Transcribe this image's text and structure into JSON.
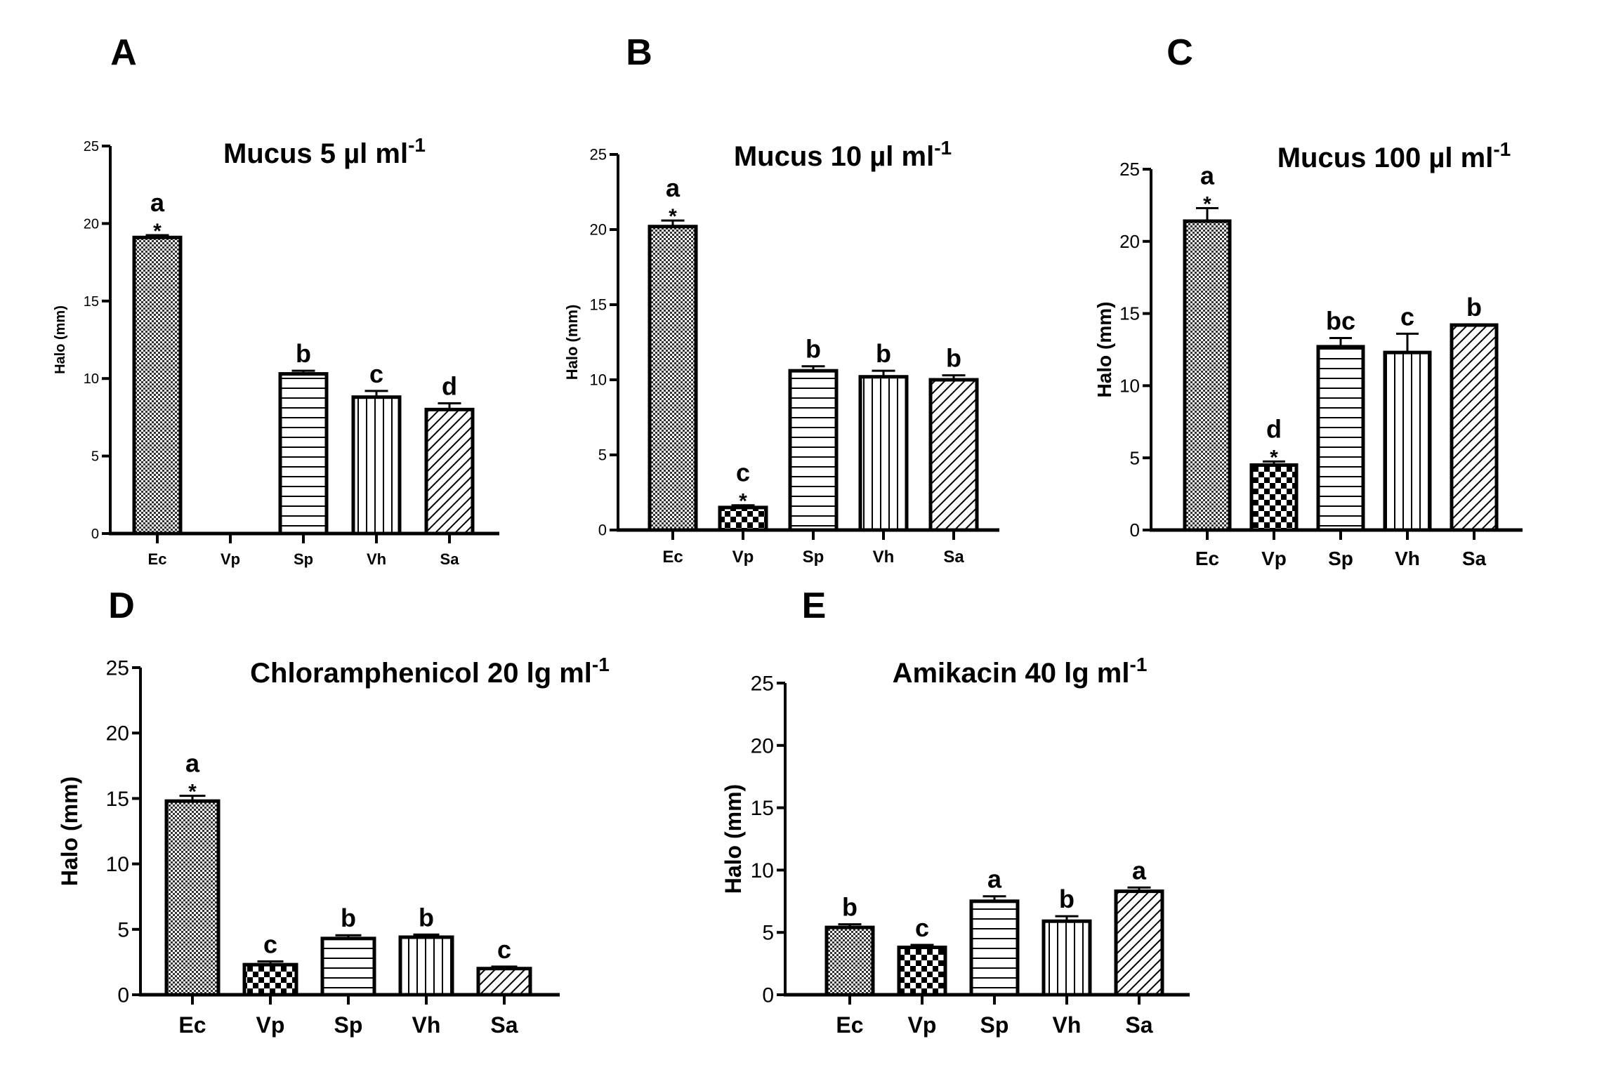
{
  "colors": {
    "axis": "#000000",
    "fill": "#ffffff"
  },
  "chart_data": [
    {
      "panel": "A",
      "type": "bar",
      "title": "Mucus 5 µl ml",
      "title_sup": "-1",
      "ylabel": "Halo (mm)",
      "ylim": [
        0,
        25
      ],
      "yticks": [
        "0",
        "5",
        "10",
        "15",
        "20",
        "25"
      ],
      "categories": [
        "Ec",
        "Vp",
        "Sp",
        "Vh",
        "Sa"
      ],
      "values": [
        19.1,
        0,
        10.3,
        8.8,
        8.0
      ],
      "errors": [
        0.15,
        0,
        0.2,
        0.4,
        0.4
      ],
      "letters": [
        "a",
        "",
        "b",
        "c",
        "d"
      ],
      "stars": [
        "*",
        "",
        "",
        "",
        ""
      ]
    },
    {
      "panel": "B",
      "type": "bar",
      "title": "Mucus 10 µl ml",
      "title_sup": "-1",
      "ylabel": "Halo (mm)",
      "ylim": [
        0,
        25
      ],
      "yticks": [
        "0",
        "5",
        "10",
        "15",
        "20",
        "25"
      ],
      "categories": [
        "Ec",
        "Vp",
        "Sp",
        "Vh",
        "Sa"
      ],
      "values": [
        20.2,
        1.5,
        10.6,
        10.2,
        10.0
      ],
      "errors": [
        0.4,
        0.15,
        0.3,
        0.4,
        0.3
      ],
      "letters": [
        "a",
        "c",
        "b",
        "b",
        "b"
      ],
      "stars": [
        "*",
        "*",
        "",
        "",
        ""
      ]
    },
    {
      "panel": "C",
      "type": "bar",
      "title": "Mucus 100 µl ml",
      "title_sup": "-1",
      "ylabel": "Halo (mm)",
      "ylim": [
        0,
        25
      ],
      "yticks": [
        "0",
        "5",
        "10",
        "15",
        "20",
        "25"
      ],
      "categories": [
        "Ec",
        "Vp",
        "Sp",
        "Vh",
        "Sa"
      ],
      "values": [
        21.4,
        4.5,
        12.7,
        12.3,
        14.2
      ],
      "errors": [
        0.9,
        0.25,
        0.6,
        1.3,
        0.05
      ],
      "letters": [
        "a",
        "d",
        "bc",
        "c",
        "b"
      ],
      "stars": [
        "*",
        "*",
        "",
        "",
        ""
      ]
    },
    {
      "panel": "D",
      "type": "bar",
      "title": "Chloramphenicol  20 lg ml",
      "title_sup": "-1",
      "ylabel": "Halo (mm)",
      "ylim": [
        0,
        25
      ],
      "yticks": [
        "0",
        "5",
        "10",
        "15",
        "20",
        "25"
      ],
      "categories": [
        "Ec",
        "Vp",
        "Sp",
        "Vh",
        "Sa"
      ],
      "values": [
        14.8,
        2.3,
        4.3,
        4.4,
        2.0
      ],
      "errors": [
        0.4,
        0.25,
        0.25,
        0.2,
        0.15
      ],
      "letters": [
        "a",
        "c",
        "b",
        "b",
        "c"
      ],
      "stars": [
        "*",
        "",
        "",
        "",
        ""
      ]
    },
    {
      "panel": "E",
      "type": "bar",
      "title": "Amikacin  40 lg ml",
      "title_sup": "-1",
      "ylabel": "Halo (mm)",
      "ylim": [
        0,
        25
      ],
      "yticks": [
        "0",
        "5",
        "10",
        "15",
        "20",
        "25"
      ],
      "categories": [
        "Ec",
        "Vp",
        "Sp",
        "Vh",
        "Sa"
      ],
      "values": [
        5.4,
        3.8,
        7.5,
        5.9,
        8.3
      ],
      "errors": [
        0.25,
        0.2,
        0.4,
        0.4,
        0.3
      ],
      "letters": [
        "b",
        "c",
        "a",
        "b",
        "a"
      ],
      "stars": [
        "",
        "",
        "",
        "",
        ""
      ]
    }
  ]
}
